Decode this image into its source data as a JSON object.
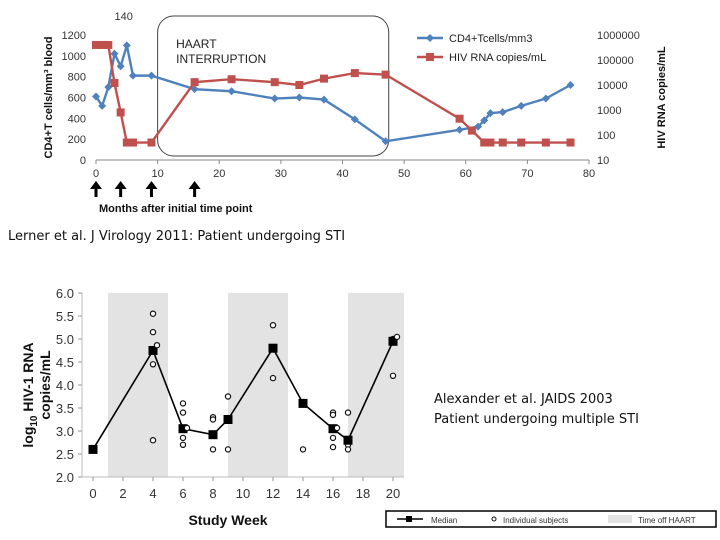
{
  "chart_data": [
    {
      "type": "line",
      "title": "",
      "xlabel": "Months after initial time point",
      "ylabel": "CD4+T cells/mm³ blood",
      "y2label": "HIV RNA copies/mL",
      "xlim": [
        0,
        80
      ],
      "ylim": [
        0,
        1200
      ],
      "y2lim": [
        10,
        1000000
      ],
      "y2scale": "log",
      "x_ticks": [
        "0",
        "10",
        "20",
        "30",
        "40",
        "50",
        "60",
        "70",
        "80"
      ],
      "y_ticks": [
        "0",
        "200",
        "400",
        "600",
        "800",
        "1000",
        "1200"
      ],
      "y2_ticks": [
        "10",
        "100",
        "1000",
        "10000",
        "100000",
        "1000000"
      ],
      "peak_label": "140",
      "box_label": "HAART\nINTERRUPTION",
      "colors": {
        "cd4": "#4f81bd",
        "rna": "#c0504d"
      },
      "legend_position": "top-right",
      "series": [
        {
          "name": "CD4+Tcells/mm3",
          "axis": "left",
          "marker": "diamond",
          "x": [
            0,
            1,
            2,
            3,
            4,
            5,
            6,
            9,
            16,
            22,
            29,
            33,
            37,
            42,
            47,
            59,
            62,
            63,
            64,
            66,
            69,
            73,
            77
          ],
          "values": [
            610,
            520,
            700,
            1020,
            900,
            1100,
            810,
            810,
            680,
            660,
            590,
            600,
            580,
            390,
            180,
            290,
            320,
            380,
            450,
            460,
            520,
            590,
            720
          ]
        },
        {
          "name": "HIV RNA copies/mL",
          "axis": "right",
          "marker": "square",
          "x": [
            0,
            1,
            2,
            3,
            4,
            5,
            6,
            9,
            16,
            22,
            29,
            33,
            37,
            42,
            47,
            59,
            61,
            63,
            64,
            66,
            69,
            73,
            77
          ],
          "values": [
            400000,
            400000,
            400000,
            12000,
            800,
            50,
            50,
            50,
            13000,
            17000,
            13000,
            10000,
            18000,
            30000,
            26000,
            450,
            150,
            50,
            50,
            50,
            50,
            50,
            50
          ]
        }
      ],
      "arrows_at_x": [
        0,
        4,
        9,
        16
      ]
    },
    {
      "type": "line",
      "title": "",
      "xlabel": "Study Week",
      "ylabel": "log10 HIV-1 RNA copies/mL",
      "ylabel_lines": [
        "log",
        "10",
        " HIV-1 RNA",
        "copies/mL"
      ],
      "xlim": [
        0,
        20
      ],
      "ylim": [
        2.0,
        6.0
      ],
      "x_ticks": [
        "0",
        "2",
        "4",
        "6",
        "8",
        "10",
        "12",
        "14",
        "16",
        "18",
        "20"
      ],
      "y_ticks": [
        "2.0",
        "2.5",
        "3.0",
        "3.5",
        "4.0",
        "4.5",
        "5.0",
        "5.5",
        "6.0"
      ],
      "shaded_regions": [
        [
          1,
          5
        ],
        [
          9,
          13
        ],
        [
          17,
          21
        ]
      ],
      "median": {
        "name": "Median",
        "x": [
          0,
          4,
          6,
          8,
          9,
          12,
          14,
          16,
          17,
          20
        ],
        "values": [
          2.6,
          4.75,
          3.05,
          2.92,
          3.25,
          4.8,
          3.6,
          3.05,
          2.8,
          4.95
        ]
      },
      "individual_subjects": {
        "name": "Individual subjects",
        "x": [
          4,
          4,
          4,
          4,
          6,
          6,
          6,
          6,
          8,
          8,
          8,
          9,
          9,
          12,
          12,
          12,
          14,
          16,
          16,
          16,
          16,
          17,
          17,
          17,
          20,
          20
        ],
        "values": [
          5.55,
          5.15,
          4.45,
          2.8,
          3.6,
          3.4,
          2.85,
          2.7,
          3.3,
          3.25,
          2.6,
          3.75,
          2.6,
          5.3,
          4.8,
          4.15,
          2.6,
          3.4,
          3.35,
          2.85,
          2.65,
          3.4,
          2.7,
          2.6,
          5.0,
          4.2
        ],
        "aux_circles": [
          [
            4,
            4.8
          ],
          [
            6,
            3.0
          ],
          [
            16,
            3.0
          ],
          [
            20,
            4.98
          ]
        ]
      },
      "legend": {
        "median_label": "Median",
        "individual_label": "Individual subjects",
        "off_label": "Time off HAART"
      },
      "legend_position": "bottom-right"
    }
  ],
  "captions": {
    "chart1": "Lerner et al. J Virology 2011: Patient undergoing STI",
    "chart2_line1": "Alexander et al. JAIDS 2003",
    "chart2_line2": "Patient undergoing multiple STI"
  }
}
